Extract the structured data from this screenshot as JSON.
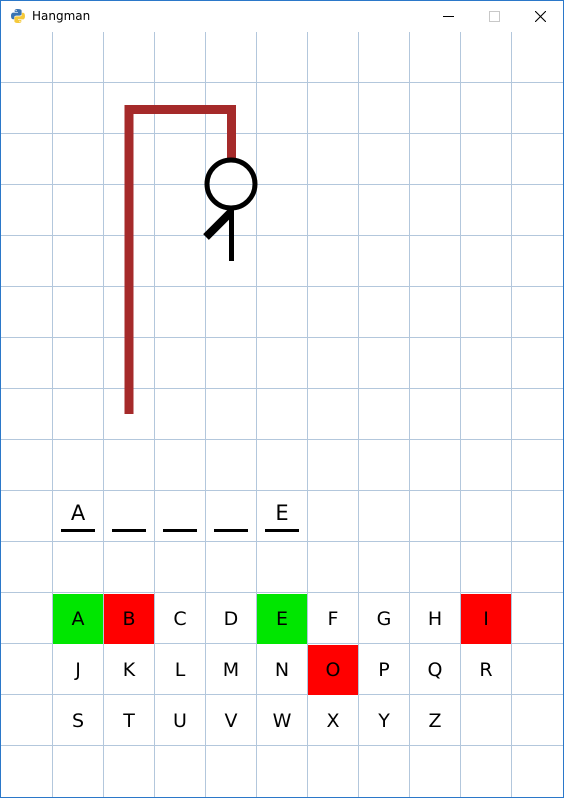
{
  "window": {
    "title": "Hangman",
    "controls": {
      "minimize": "minimize-icon",
      "maximize": "maximize-icon",
      "close": "close-icon"
    }
  },
  "colors": {
    "gallows": "#a52a2a",
    "correct": "#00e600",
    "wrong": "#ff0000",
    "grid": "#b3c7dc",
    "window_border": "#2b78c9"
  },
  "hangman": {
    "parts_drawn": [
      "head",
      "body",
      "left-arm"
    ]
  },
  "word": {
    "slots": [
      "A",
      "",
      "",
      "",
      "E"
    ]
  },
  "keyboard": {
    "rows": [
      [
        {
          "letter": "A",
          "state": "correct"
        },
        {
          "letter": "B",
          "state": "wrong"
        },
        {
          "letter": "C",
          "state": "unused"
        },
        {
          "letter": "D",
          "state": "unused"
        },
        {
          "letter": "E",
          "state": "correct"
        },
        {
          "letter": "F",
          "state": "unused"
        },
        {
          "letter": "G",
          "state": "unused"
        },
        {
          "letter": "H",
          "state": "unused"
        },
        {
          "letter": "I",
          "state": "wrong"
        }
      ],
      [
        {
          "letter": "J",
          "state": "unused"
        },
        {
          "letter": "K",
          "state": "unused"
        },
        {
          "letter": "L",
          "state": "unused"
        },
        {
          "letter": "M",
          "state": "unused"
        },
        {
          "letter": "N",
          "state": "unused"
        },
        {
          "letter": "O",
          "state": "wrong"
        },
        {
          "letter": "P",
          "state": "unused"
        },
        {
          "letter": "Q",
          "state": "unused"
        },
        {
          "letter": "R",
          "state": "unused"
        }
      ],
      [
        {
          "letter": "S",
          "state": "unused"
        },
        {
          "letter": "T",
          "state": "unused"
        },
        {
          "letter": "U",
          "state": "unused"
        },
        {
          "letter": "V",
          "state": "unused"
        },
        {
          "letter": "W",
          "state": "unused"
        },
        {
          "letter": "X",
          "state": "unused"
        },
        {
          "letter": "Y",
          "state": "unused"
        },
        {
          "letter": "Z",
          "state": "unused"
        }
      ]
    ]
  }
}
